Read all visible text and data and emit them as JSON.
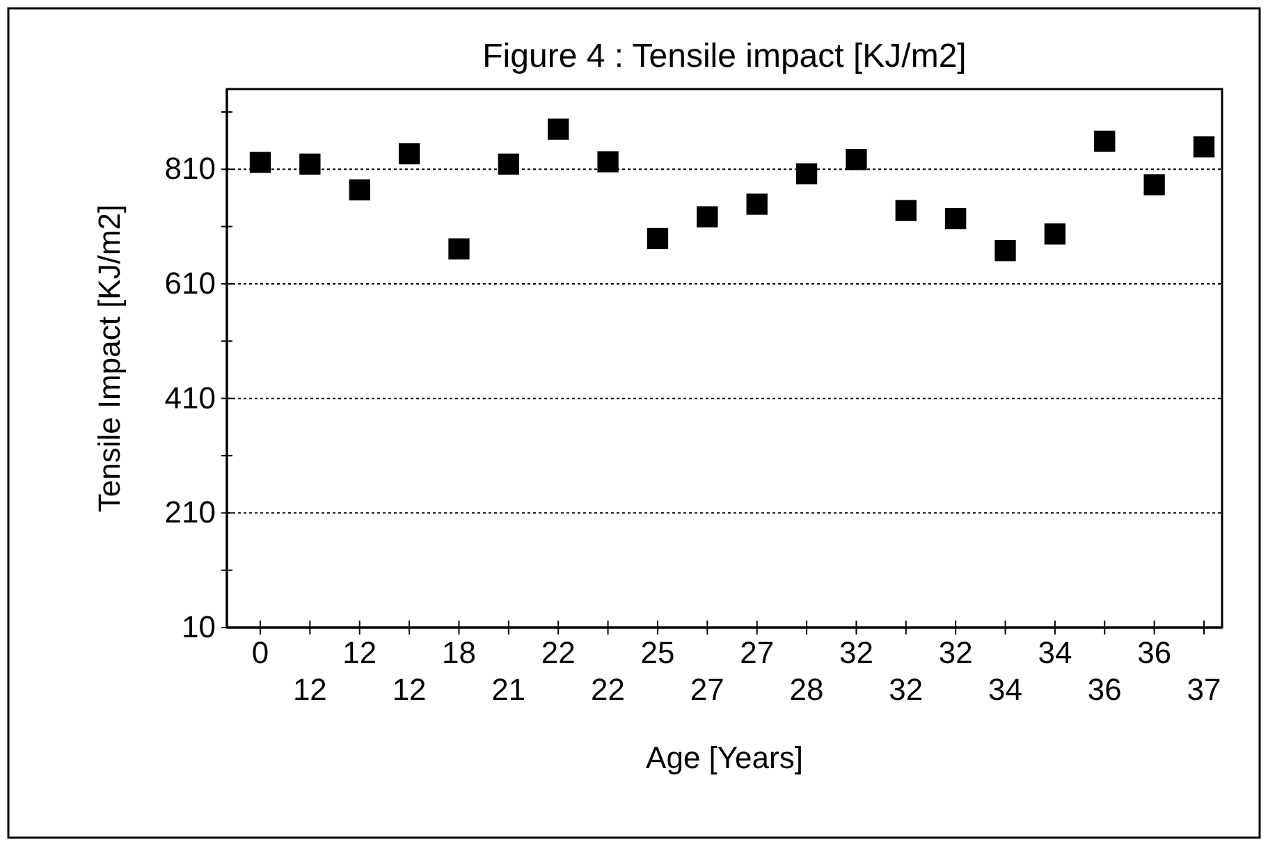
{
  "chart_data": {
    "type": "scatter",
    "title": "Figure 4 : Tensile impact [KJ/m2]",
    "xlabel": "Age [Years]",
    "ylabel": "Tensile Impact [KJ/m2]",
    "categories": [
      "0",
      "12",
      "12",
      "12",
      "18",
      "21",
      "22",
      "22",
      "25",
      "27",
      "27",
      "28",
      "32",
      "32",
      "32",
      "34",
      "34",
      "36",
      "36",
      "37"
    ],
    "series": [
      {
        "color": "#000000",
        "values": [
          822,
          819,
          774,
          837,
          671,
          819,
          880,
          823,
          689,
          727,
          749,
          802,
          827,
          738,
          724,
          668,
          697,
          859,
          783,
          849
        ]
      }
    ],
    "ylim": [
      10,
      950
    ],
    "yticks": [
      10,
      {
        "value": 110,
        "label": null
      },
      210,
      {
        "value": 310,
        "label": null
      },
      410,
      {
        "value": 510,
        "label": null
      },
      610,
      {
        "value": 710,
        "label": null
      },
      810,
      {
        "value": 910,
        "label": null
      }
    ],
    "grid": "y",
    "marker": "square"
  }
}
